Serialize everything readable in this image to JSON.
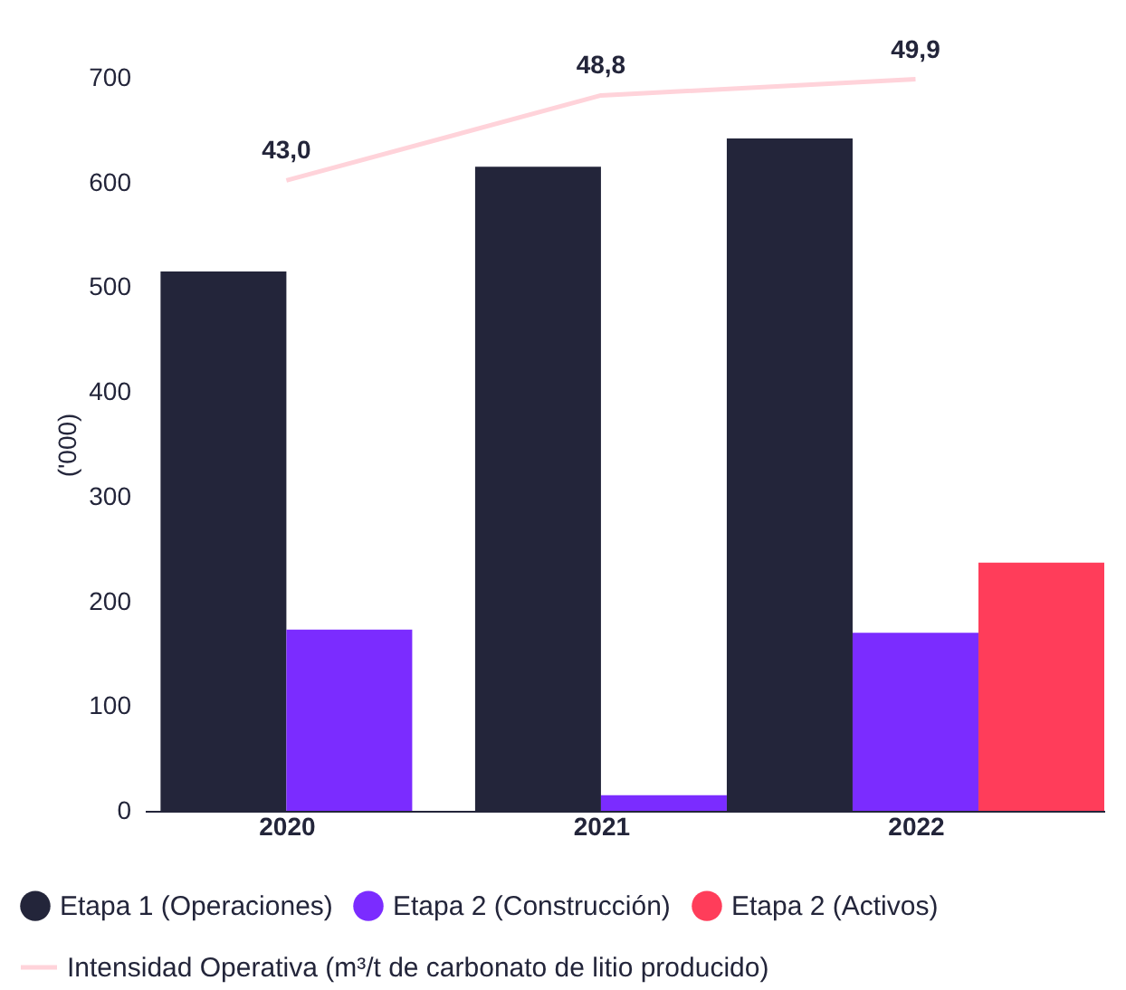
{
  "chart_data": {
    "type": "bar",
    "ylabel": "('000)",
    "categories": [
      "2020",
      "2021",
      "2022"
    ],
    "ylim": [
      0,
      700
    ],
    "yticks": [
      0,
      100,
      200,
      300,
      400,
      500,
      600,
      700
    ],
    "grid": false,
    "legend": "bottom",
    "series": [
      {
        "name": "Etapa 1 (Operaciones)",
        "color": "#23253a",
        "values": [
          515,
          615,
          642
        ]
      },
      {
        "name": "Etapa 2 (Construcción)",
        "color": "#7b2cff",
        "values": [
          173,
          15,
          170
        ]
      },
      {
        "name": "Etapa 2 (Activos)",
        "color": "#ff3d5a",
        "values": [
          null,
          null,
          237
        ]
      },
      {
        "name": "Intensidad Operativa (m³/t de carbonato de litio producido)",
        "type": "line",
        "axis": "y2",
        "color": "#ffd3da",
        "values": [
          43.0,
          48.8,
          49.9
        ],
        "value_labels": [
          "43,0",
          "48,8",
          "49,9"
        ]
      }
    ]
  }
}
